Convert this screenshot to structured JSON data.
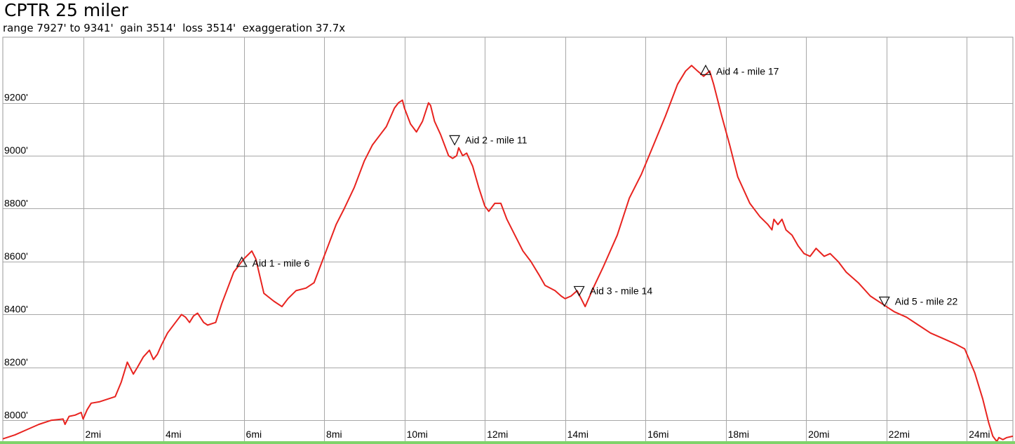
{
  "chart_data": {
    "type": "line",
    "title": "CPTR 25 miler",
    "subtitle": "range 7927' to 9341'  gain 3514'  loss 3514'  exaggeration 37.7x",
    "xlabel": "",
    "ylabel": "",
    "xlim": [
      0,
      25.15
    ],
    "ylim": [
      7916,
      9448
    ],
    "grid": true,
    "line_color": "#e8231f",
    "x_ticks": [
      {
        "value": 2,
        "label": "2mi"
      },
      {
        "value": 4,
        "label": "4mi"
      },
      {
        "value": 6,
        "label": "6mi"
      },
      {
        "value": 8,
        "label": "8mi"
      },
      {
        "value": 10,
        "label": "10mi"
      },
      {
        "value": 12,
        "label": "12mi"
      },
      {
        "value": 14,
        "label": "14mi"
      },
      {
        "value": 16,
        "label": "16mi"
      },
      {
        "value": 18,
        "label": "18mi"
      },
      {
        "value": 20,
        "label": "20mi"
      },
      {
        "value": 22,
        "label": "22mi"
      },
      {
        "value": 24,
        "label": "24mi"
      }
    ],
    "y_ticks": [
      {
        "value": 8000,
        "label": "8000'"
      },
      {
        "value": 8200,
        "label": "8200'"
      },
      {
        "value": 8400,
        "label": "8400'"
      },
      {
        "value": 8600,
        "label": "8600'"
      },
      {
        "value": 8800,
        "label": "8800'"
      },
      {
        "value": 9000,
        "label": "9000'"
      },
      {
        "value": 9200,
        "label": "9200'"
      }
    ],
    "series": [
      {
        "x": [
          0,
          0.3,
          0.6,
          0.9,
          1.2,
          1.5,
          1.55,
          1.65,
          1.8,
          1.95,
          2.0,
          2.1,
          2.2,
          2.4,
          2.8,
          2.95,
          3.1,
          3.25,
          3.35,
          3.5,
          3.65,
          3.75,
          3.85,
          3.95,
          4.1,
          4.3,
          4.45,
          4.55,
          4.65,
          4.75,
          4.85,
          5.0,
          5.1,
          5.2,
          5.3,
          5.45,
          5.6,
          5.75,
          5.9,
          6.0,
          6.1,
          6.2,
          6.3,
          6.5,
          6.75,
          6.95,
          7.1,
          7.3,
          7.55,
          7.75,
          7.9,
          8.1,
          8.3,
          8.5,
          8.75,
          9.0,
          9.2,
          9.4,
          9.55,
          9.75,
          9.85,
          9.95,
          10.0,
          10.15,
          10.3,
          10.45,
          10.6,
          10.65,
          10.75,
          10.9,
          11.0,
          11.1,
          11.2,
          11.3,
          11.35,
          11.45,
          11.55,
          11.7,
          11.85,
          12.0,
          12.1,
          12.25,
          12.4,
          12.55,
          12.75,
          12.95,
          13.15,
          13.35,
          13.5,
          13.75,
          13.9,
          14.0,
          14.15,
          14.3,
          14.5,
          14.7,
          14.95,
          15.3,
          15.6,
          15.9,
          16.2,
          16.5,
          16.8,
          17.0,
          17.15,
          17.3,
          17.45,
          17.6,
          17.7,
          17.9,
          18.1,
          18.3,
          18.6,
          18.85,
          19.05,
          19.15,
          19.2,
          19.3,
          19.4,
          19.5,
          19.65,
          19.8,
          19.95,
          20.1,
          20.25,
          20.45,
          20.6,
          20.8,
          21.0,
          21.3,
          21.6,
          21.9,
          22.2,
          22.5,
          22.8,
          23.1,
          23.4,
          23.7,
          23.95,
          24.2,
          24.4,
          24.55,
          24.65,
          24.75,
          24.8,
          24.9,
          25.0,
          25.15
        ],
        "y": [
          7930,
          7945,
          7965,
          7985,
          8000,
          8005,
          7985,
          8015,
          8020,
          8030,
          8005,
          8040,
          8065,
          8070,
          8090,
          8145,
          8220,
          8175,
          8200,
          8240,
          8265,
          8230,
          8250,
          8285,
          8330,
          8370,
          8400,
          8390,
          8370,
          8395,
          8405,
          8370,
          8360,
          8365,
          8370,
          8440,
          8500,
          8560,
          8590,
          8610,
          8625,
          8640,
          8610,
          8480,
          8450,
          8430,
          8460,
          8490,
          8500,
          8520,
          8580,
          8660,
          8740,
          8800,
          8880,
          8980,
          9040,
          9080,
          9110,
          9180,
          9200,
          9210,
          9180,
          9120,
          9090,
          9130,
          9200,
          9190,
          9130,
          9080,
          9040,
          9000,
          8990,
          9000,
          9030,
          9000,
          9010,
          8960,
          8880,
          8810,
          8790,
          8820,
          8820,
          8760,
          8700,
          8640,
          8600,
          8550,
          8510,
          8490,
          8470,
          8460,
          8470,
          8490,
          8430,
          8500,
          8580,
          8700,
          8840,
          8930,
          9040,
          9150,
          9270,
          9320,
          9341,
          9320,
          9300,
          9320,
          9270,
          9150,
          9040,
          8920,
          8820,
          8770,
          8740,
          8720,
          8760,
          8740,
          8760,
          8720,
          8700,
          8660,
          8630,
          8620,
          8650,
          8620,
          8630,
          8600,
          8560,
          8520,
          8470,
          8440,
          8410,
          8390,
          8360,
          8330,
          8310,
          8290,
          8270,
          8180,
          8080,
          7990,
          7940,
          7920,
          7935,
          7927,
          7935,
          7940
        ]
      }
    ],
    "annotations": [
      {
        "label": "Aid 1 - mile 6",
        "x": 5.95,
        "y": 8595,
        "marker": "up-triangle"
      },
      {
        "label": "Aid 2 - mile 11",
        "x": 11.25,
        "y": 9060,
        "marker": "down-triangle"
      },
      {
        "label": "Aid 3 - mile 14",
        "x": 14.35,
        "y": 8490,
        "marker": "down-triangle"
      },
      {
        "label": "Aid 4 - mile 17",
        "x": 17.5,
        "y": 9320,
        "marker": "up-triangle"
      },
      {
        "label": "Aid 5 - mile 22",
        "x": 21.95,
        "y": 8450,
        "marker": "down-triangle"
      }
    ]
  }
}
